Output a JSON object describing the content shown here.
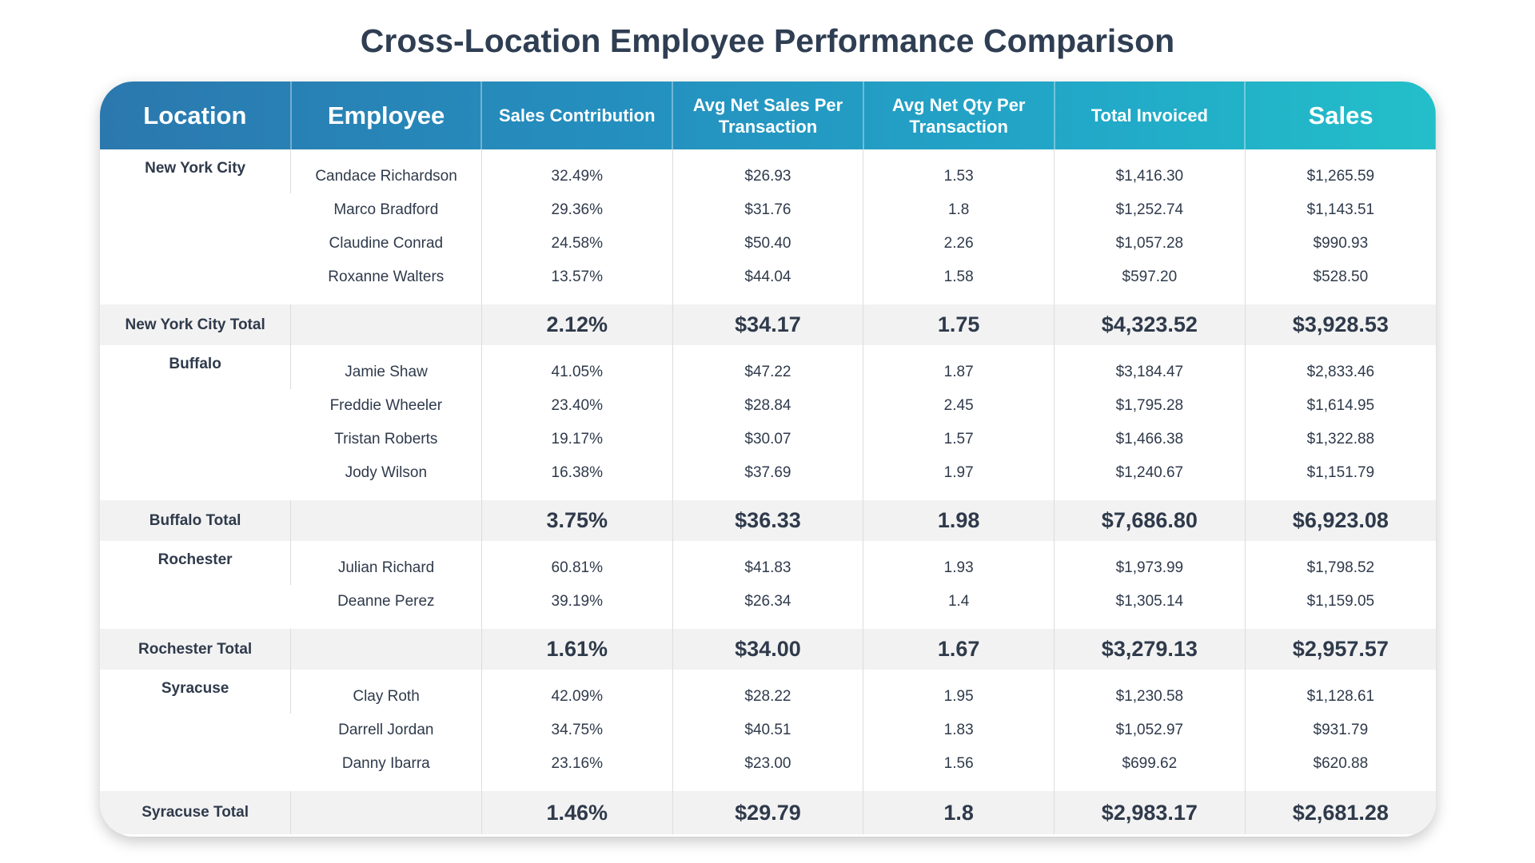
{
  "title": "Cross-Location Employee Performance Comparison",
  "colors": {
    "header_start": "#2b78ae",
    "header_end": "#23bfc9",
    "total_row_bg": "#f2f2f2",
    "text": "#2f3a4b"
  },
  "columns": [
    "Location",
    "Employee",
    "Sales Contribution",
    "Avg Net Sales Per Transaction",
    "Avg Net Qty Per Transaction",
    "Total Invoiced",
    "Sales"
  ],
  "groups": [
    {
      "location": "New York City",
      "rows": [
        [
          "Candace Richardson",
          "32.49%",
          "$26.93",
          "1.53",
          "$1,416.30",
          "$1,265.59"
        ],
        [
          "Marco Bradford",
          "29.36%",
          "$31.76",
          "1.8",
          "$1,252.74",
          "$1,143.51"
        ],
        [
          "Claudine Conrad",
          "24.58%",
          "$50.40",
          "2.26",
          "$1,057.28",
          "$990.93"
        ],
        [
          "Roxanne Walters",
          "13.57%",
          "$44.04",
          "1.58",
          "$597.20",
          "$528.50"
        ]
      ],
      "total": [
        "New York City Total",
        "",
        "2.12%",
        "$34.17",
        "1.75",
        "$4,323.52",
        "$3,928.53"
      ]
    },
    {
      "location": "Buffalo",
      "rows": [
        [
          "Jamie Shaw",
          "41.05%",
          "$47.22",
          "1.87",
          "$3,184.47",
          "$2,833.46"
        ],
        [
          "Freddie Wheeler",
          "23.40%",
          "$28.84",
          "2.45",
          "$1,795.28",
          "$1,614.95"
        ],
        [
          "Tristan Roberts",
          "19.17%",
          "$30.07",
          "1.57",
          "$1,466.38",
          "$1,322.88"
        ],
        [
          "Jody Wilson",
          "16.38%",
          "$37.69",
          "1.97",
          "$1,240.67",
          "$1,151.79"
        ]
      ],
      "total": [
        "Buffalo Total",
        "",
        "3.75%",
        "$36.33",
        "1.98",
        "$7,686.80",
        "$6,923.08"
      ]
    },
    {
      "location": "Rochester",
      "rows": [
        [
          "Julian Richard",
          "60.81%",
          "$41.83",
          "1.93",
          "$1,973.99",
          "$1,798.52"
        ],
        [
          "Deanne Perez",
          "39.19%",
          "$26.34",
          "1.4",
          "$1,305.14",
          "$1,159.05"
        ]
      ],
      "total": [
        "Rochester Total",
        "",
        "1.61%",
        "$34.00",
        "1.67",
        "$3,279.13",
        "$2,957.57"
      ]
    },
    {
      "location": "Syracuse",
      "rows": [
        [
          "Clay Roth",
          "42.09%",
          "$28.22",
          "1.95",
          "$1,230.58",
          "$1,128.61"
        ],
        [
          "Darrell Jordan",
          "34.75%",
          "$40.51",
          "1.83",
          "$1,052.97",
          "$931.79"
        ],
        [
          "Danny Ibarra",
          "23.16%",
          "$23.00",
          "1.56",
          "$699.62",
          "$620.88"
        ]
      ],
      "total": [
        "Syracuse Total",
        "",
        "1.46%",
        "$29.79",
        "1.8",
        "$2,983.17",
        "$2,681.28"
      ]
    }
  ]
}
